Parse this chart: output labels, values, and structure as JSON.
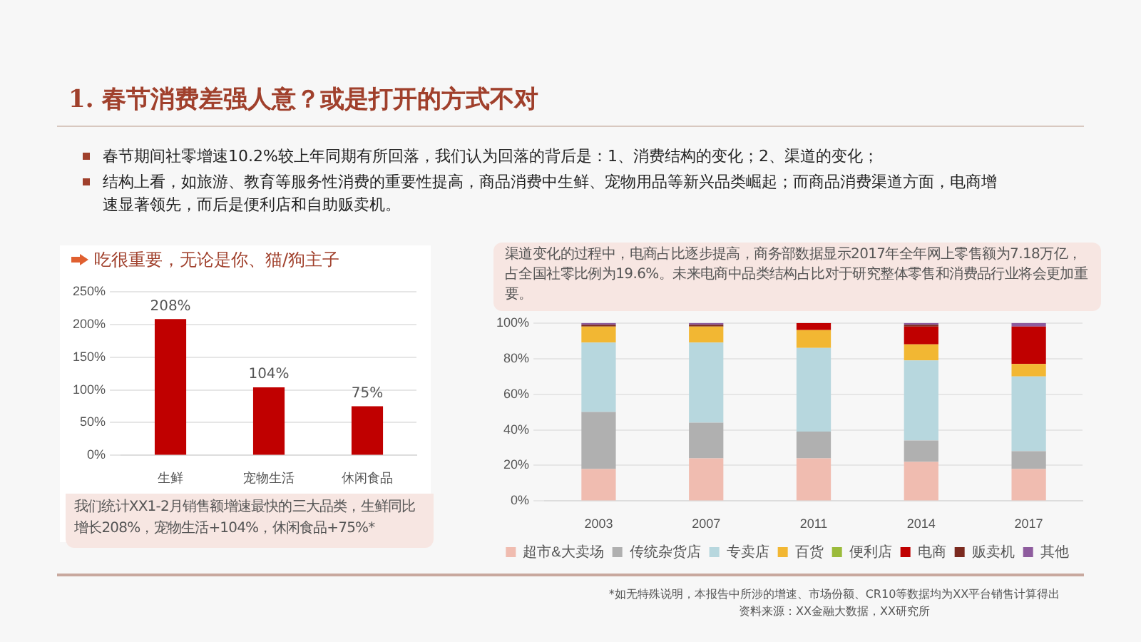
{
  "chart_data": [
    {
      "type": "bar",
      "title": "吃很重要，无论是你、猫/狗主子",
      "categories": [
        "生鲜",
        "宠物生活",
        "休闲食品"
      ],
      "values": [
        208,
        104,
        75
      ],
      "value_labels": [
        "208%",
        "104%",
        "75%"
      ],
      "color": "#c00000",
      "ylim": [
        0,
        250
      ],
      "yticks": [
        {
          "value": 0,
          "label": "0%"
        },
        {
          "value": 50,
          "label": "50%"
        },
        {
          "value": 100,
          "label": "100%"
        },
        {
          "value": 150,
          "label": "150%"
        },
        {
          "value": 200,
          "label": "200%"
        },
        {
          "value": 250,
          "label": "250%"
        }
      ],
      "grid": "y",
      "annotations": [
        "1. 春节消费差强人意？或是打开的方式不对",
        "春节期间社零增速10.2%较上年同期有所回落，我们认为回落的背后是：1、消费结构的变化；2、渠道的变化；",
        "结构上看，如旅游、教育等服务性消费的重要性提高，商品消费中生鲜、宠物用品等新兴品类崛起；而商品消费渠道方面，电商增速显著领先，而后是便利店和自助贩卖机。",
        "我们统计XX1-2月销售额增速最快的三大品类，生鲜同比增长208%，宠物生活+104%，休闲食品+75%*"
      ]
    },
    {
      "type": "bar",
      "stacked": true,
      "categories": [
        "2003",
        "2007",
        "2011",
        "2014",
        "2017"
      ],
      "series": [
        {
          "name": "超市&大卖场",
          "color": "#f0bcb0",
          "values": [
            18,
            24,
            24,
            22,
            18
          ]
        },
        {
          "name": "传统杂货店",
          "color": "#b0b0b0",
          "values": [
            32,
            20,
            15,
            12,
            10
          ]
        },
        {
          "name": "专卖店",
          "color": "#b7d7de",
          "values": [
            39,
            45,
            47,
            45,
            42
          ]
        },
        {
          "name": "百货",
          "color": "#f2b733",
          "values": [
            9,
            9,
            10,
            9,
            7
          ]
        },
        {
          "name": "便利店",
          "color": "#9bbb3b",
          "values": [
            0,
            0,
            0,
            0,
            0
          ]
        },
        {
          "name": "电商",
          "color": "#c00000",
          "values": [
            0,
            0,
            4,
            10,
            21
          ]
        },
        {
          "name": "贩卖机",
          "color": "#7b2a1f",
          "values": [
            1,
            1,
            0,
            1,
            0
          ]
        },
        {
          "name": "其他",
          "color": "#8e5c9e",
          "values": [
            1,
            1,
            0,
            1,
            2
          ]
        }
      ],
      "ylim": [
        0,
        100
      ],
      "yticks": [
        {
          "value": 0,
          "label": "0%"
        },
        {
          "value": 20,
          "label": "20%"
        },
        {
          "value": 40,
          "label": "40%"
        },
        {
          "value": 60,
          "label": "60%"
        },
        {
          "value": 80,
          "label": "80%"
        },
        {
          "value": 100,
          "label": "100%"
        }
      ],
      "grid": "y",
      "legend": "bottom",
      "annotations": [
        "渠道变化的过程中，电商占比逐步提高，商务部数据显示2017年全年网上零售额为7.18万亿，占全国社零比例为19.6%。未来电商中品类结构占比对于研究整体零售和消费品行业将会更加重要。",
        "*如无特殊说明，本报告中所涉的增速、市场份额、CR10等数据均为XX平台销售计算得出",
        "资料来源：XX金融大数据，XX研究所"
      ]
    }
  ]
}
